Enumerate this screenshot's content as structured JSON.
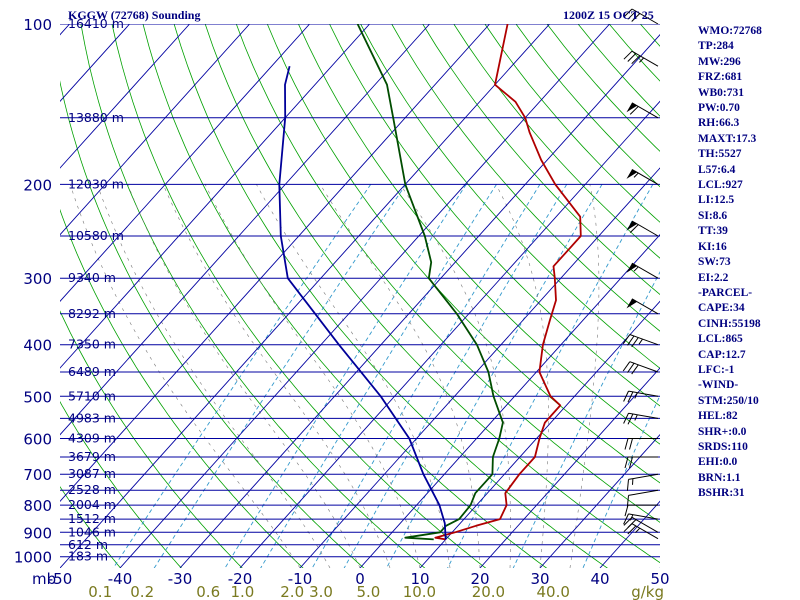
{
  "header": {
    "station": "KGGW (72768) Sounding",
    "valid": "1200Z 15 OCT 25"
  },
  "indices": [
    "WMO:72768",
    "TP:284",
    "MW:296",
    "FRZ:681",
    "WB0:731",
    "PW:0.70",
    "RH:66.3",
    "MAXT:17.3",
    "TH:5527",
    "L57:6.4",
    "LCL:927",
    "LI:12.5",
    "SI:8.6",
    "TT:39",
    "KI:16",
    "SW:73",
    "EI:2.2",
    "-PARCEL-",
    "CAPE:34",
    "CINH:55198",
    "LCL:865",
    "CAP:12.7",
    "LFC:-1",
    "-WIND-",
    "STM:250/10",
    "HEL:82",
    "SHR+:0.0",
    "SRDS:110",
    "EHI:0.0",
    "BRN:1.1",
    "BSHR:31"
  ],
  "colors": {
    "isobar": "#0000a0",
    "isotherm": "#0000a0",
    "dry_adiabat": "#00a000",
    "mixing_ratio": "#3399cc",
    "temperature": "#b00000",
    "dewpoint": "#004d00",
    "parcel": "#000099",
    "text": "#000080"
  },
  "chart_data": {
    "type": "skew-t",
    "pressure_unit": "mb",
    "pressure_ticks": [
      100,
      200,
      300,
      400,
      500,
      600,
      700,
      800,
      900,
      1000
    ],
    "temperature_ticks": [
      -50,
      -40,
      -30,
      -20,
      -10,
      0,
      10,
      20,
      30,
      40,
      50
    ],
    "temperature_tick_labels": [
      "-50",
      "-40",
      "-30",
      "-20",
      "-10",
      "0",
      "10",
      "20",
      "30",
      "40",
      "50"
    ],
    "mixing_ratio_unit": "g/kg",
    "mixing_ratio_labels": [
      {
        "text": "0.1",
        "t": -44
      },
      {
        "text": "0.2",
        "t": -37
      },
      {
        "text": "0.6",
        "t": -26
      },
      {
        "text": "1.0",
        "t": -20.3
      },
      {
        "text": "2.0",
        "t": -12
      },
      {
        "text": "3.0",
        "t": -7.2
      },
      {
        "text": "5.0",
        "t": 0.7
      },
      {
        "text": "10.0",
        "t": 9.2
      },
      {
        "text": "20.0",
        "t": 20.7
      },
      {
        "text": "40.0",
        "t": 31.5
      }
    ],
    "height_labels": [
      {
        "p": 100,
        "text": "16410 m"
      },
      {
        "p": 150,
        "text": "13880 m"
      },
      {
        "p": 200,
        "text": "12030 m"
      },
      {
        "p": 250,
        "text": "10580 m"
      },
      {
        "p": 300,
        "text": "9340 m"
      },
      {
        "p": 350,
        "text": "8292 m"
      },
      {
        "p": 400,
        "text": "7350 m"
      },
      {
        "p": 450,
        "text": "6489 m"
      },
      {
        "p": 500,
        "text": "5710 m"
      },
      {
        "p": 550,
        "text": "4983 m"
      },
      {
        "p": 600,
        "text": "4309 m"
      },
      {
        "p": 650,
        "text": "3679 m"
      },
      {
        "p": 700,
        "text": "3087 m"
      },
      {
        "p": 750,
        "text": "2528 m"
      },
      {
        "p": 800,
        "text": "2004 m"
      },
      {
        "p": 850,
        "text": "1512 m"
      },
      {
        "p": 900,
        "text": "1046 m"
      },
      {
        "p": 950,
        "text": "612 m"
      },
      {
        "p": 1000,
        "text": "183 m"
      }
    ],
    "series": [
      {
        "key": "temperature",
        "points": [
          [
            928,
            10
          ],
          [
            921,
            8
          ],
          [
            900,
            10.5
          ],
          [
            875,
            13
          ],
          [
            850,
            16
          ],
          [
            800,
            15
          ],
          [
            760,
            13
          ],
          [
            700,
            12.5
          ],
          [
            650,
            12.5
          ],
          [
            600,
            10.5
          ],
          [
            560,
            9
          ],
          [
            520,
            9
          ],
          [
            500,
            6
          ],
          [
            450,
            0.5
          ],
          [
            400,
            -3
          ],
          [
            360,
            -5.5
          ],
          [
            330,
            -7.5
          ],
          [
            300,
            -11
          ],
          [
            285,
            -13
          ],
          [
            270,
            -13
          ],
          [
            250,
            -13
          ],
          [
            230,
            -16
          ],
          [
            200,
            -25
          ],
          [
            180,
            -31
          ],
          [
            160,
            -37
          ],
          [
            150,
            -40
          ],
          [
            140,
            -44
          ],
          [
            130,
            -50
          ],
          [
            100,
            -57
          ]
        ]
      },
      {
        "key": "dewpoint",
        "points": [
          [
            928,
            8
          ],
          [
            921,
            3
          ],
          [
            900,
            8
          ],
          [
            875,
            8
          ],
          [
            850,
            9.2
          ],
          [
            800,
            9
          ],
          [
            760,
            8
          ],
          [
            720,
            8
          ],
          [
            700,
            8
          ],
          [
            650,
            5.5
          ],
          [
            600,
            3.8
          ],
          [
            560,
            2
          ],
          [
            500,
            -3.5
          ],
          [
            450,
            -8
          ],
          [
            400,
            -14
          ],
          [
            350,
            -22
          ],
          [
            300,
            -32
          ],
          [
            280,
            -34
          ],
          [
            250,
            -39
          ],
          [
            200,
            -50
          ],
          [
            150,
            -62
          ],
          [
            130,
            -68
          ],
          [
            100,
            -82
          ]
        ]
      },
      {
        "key": "parcel",
        "points": [
          [
            928,
            10
          ],
          [
            865,
            7.4
          ],
          [
            800,
            3.8
          ],
          [
            700,
            -3.5
          ],
          [
            600,
            -11.2
          ],
          [
            500,
            -22.3
          ],
          [
            400,
            -37
          ],
          [
            300,
            -55.5
          ],
          [
            250,
            -63
          ],
          [
            200,
            -71
          ],
          [
            150,
            -80
          ],
          [
            130,
            -85
          ],
          [
            120,
            -87
          ]
        ]
      }
    ],
    "wind_barbs": [
      {
        "p": 925,
        "dir": 300,
        "kt": 25
      },
      {
        "p": 900,
        "dir": 300,
        "kt": 20
      },
      {
        "p": 850,
        "dir": 280,
        "kt": 15
      },
      {
        "p": 800,
        "dir": 270,
        "kt": 10
      },
      {
        "p": 750,
        "dir": 260,
        "kt": 10
      },
      {
        "p": 700,
        "dir": 260,
        "kt": 15
      },
      {
        "p": 650,
        "dir": 270,
        "kt": 20
      },
      {
        "p": 600,
        "dir": 270,
        "kt": 20
      },
      {
        "p": 550,
        "dir": 280,
        "kt": 25
      },
      {
        "p": 500,
        "dir": 280,
        "kt": 25
      },
      {
        "p": 450,
        "dir": 290,
        "kt": 30
      },
      {
        "p": 400,
        "dir": 290,
        "kt": 35
      },
      {
        "p": 350,
        "dir": 300,
        "kt": 50
      },
      {
        "p": 300,
        "dir": 300,
        "kt": 55
      },
      {
        "p": 250,
        "dir": 300,
        "kt": 60
      },
      {
        "p": 200,
        "dir": 300,
        "kt": 55
      },
      {
        "p": 150,
        "dir": 300,
        "kt": 60
      },
      {
        "p": 120,
        "dir": 300,
        "kt": 35
      },
      {
        "p": 100,
        "dir": 300,
        "kt": 30
      }
    ]
  }
}
